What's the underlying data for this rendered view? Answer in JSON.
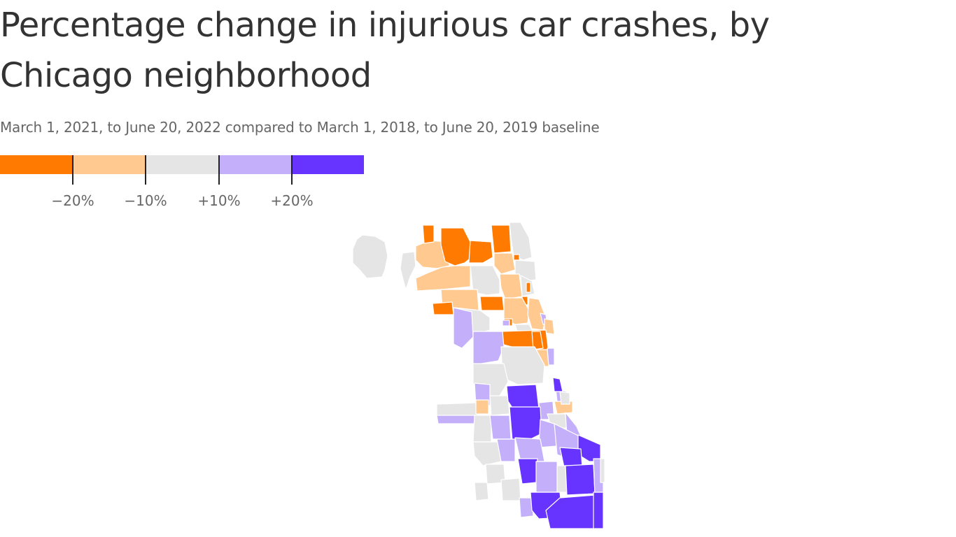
{
  "title": "Percentage change in injurious car crashes, by Chicago neighborhood",
  "subtitle": "March 1, 2021, to June 20, 2022 compared to March 1, 2018, to June 20, 2019 baseline",
  "legend": {
    "bins": [
      {
        "label": "less than -20%",
        "color": "#FF7A00"
      },
      {
        "label": "-20% to -10%",
        "color": "#FFC98F"
      },
      {
        "label": "-10% to +10%",
        "color": "#E5E5E6"
      },
      {
        "label": "+10% to +20%",
        "color": "#C4B0FA"
      },
      {
        "label": "more than +20%",
        "color": "#6633FF"
      }
    ],
    "ticks": [
      "−20%",
      "−10%",
      "+10%",
      "+20%"
    ]
  },
  "map": {
    "city": "Chicago",
    "border_color": "#FFFFFF"
  }
}
